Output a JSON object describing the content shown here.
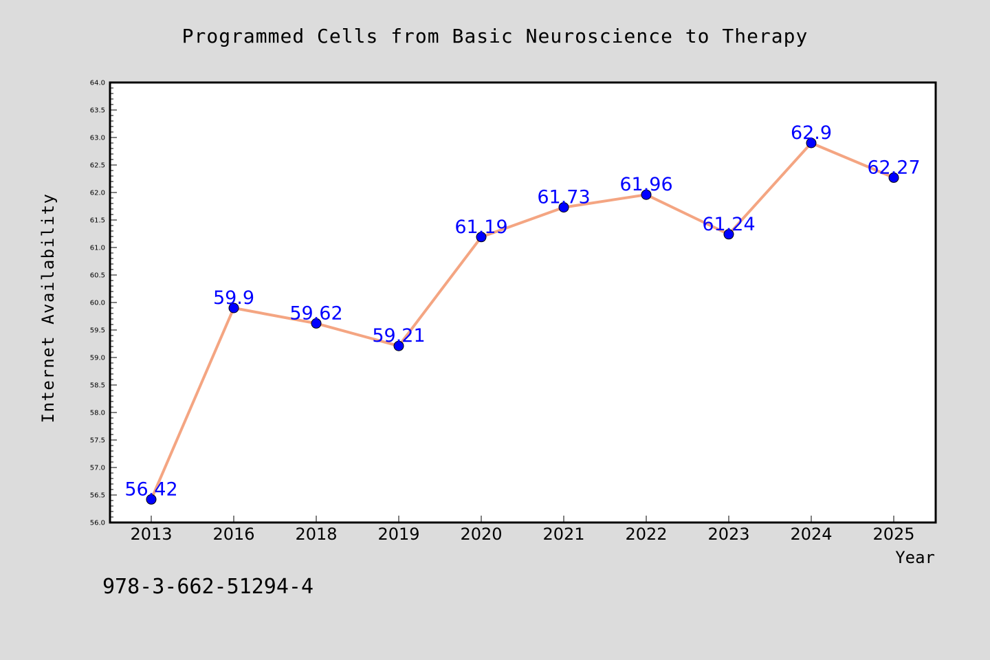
{
  "chart_data": {
    "type": "line",
    "title": "Programmed Cells from Basic Neuroscience to Therapy",
    "xlabel": "Year",
    "ylabel": "Internet Availability",
    "categories": [
      "2013",
      "2016",
      "2018",
      "2019",
      "2020",
      "2021",
      "2022",
      "2023",
      "2024",
      "2025"
    ],
    "series": [
      {
        "values": [
          56.42,
          59.9,
          59.62,
          59.21,
          61.19,
          61.73,
          61.96,
          61.24,
          62.9,
          62.27
        ],
        "labels": [
          "56.42",
          "59.9",
          "59.62",
          "59.21",
          "61.19",
          "61.73",
          "61.96",
          "61.24",
          "62.9",
          "62.27"
        ]
      }
    ],
    "ylim": [
      56.0,
      64.0
    ],
    "yticks": [
      "56.0",
      "56.5",
      "57.0",
      "57.5",
      "58.0",
      "58.5",
      "59.0",
      "59.5",
      "60.0",
      "60.5",
      "61.0",
      "61.5",
      "62.0",
      "62.5",
      "63.0",
      "63.5",
      "64.0"
    ],
    "grid": false,
    "legend": "none",
    "colors": {
      "line": "#f4a582",
      "marker": "#0000ff",
      "label": "#0000ff",
      "background": "#dcdcdc",
      "plot_background": "#ffffff"
    }
  },
  "footer": {
    "isbn": "978-3-662-51294-4"
  }
}
